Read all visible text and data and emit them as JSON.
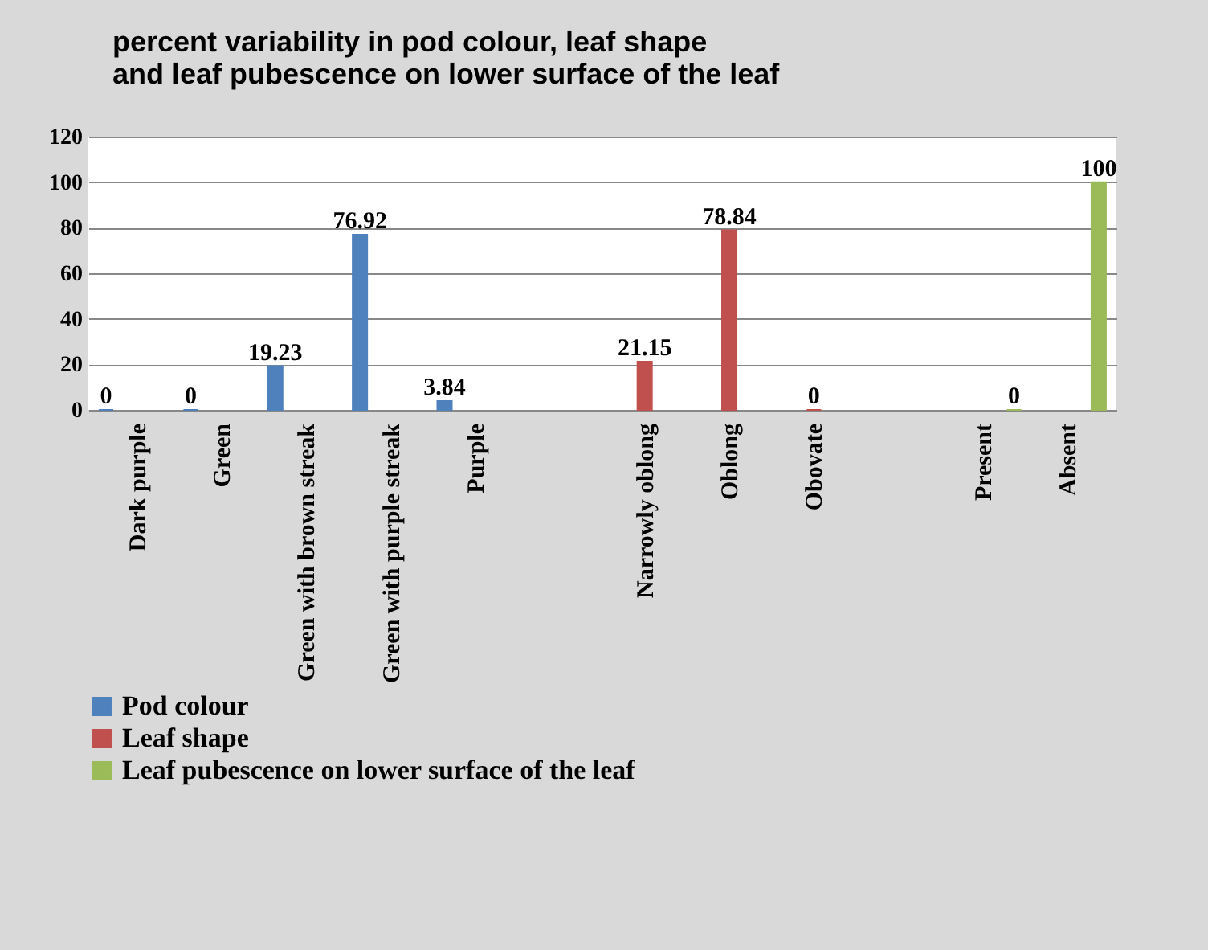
{
  "chart_data": {
    "type": "bar",
    "title": "percent variability in pod colour, leaf shape and leaf pubescence on lower surface of the leaf",
    "categories": [
      "Dark purple",
      "Green",
      "Green with brown streak",
      "Green with purple streak",
      "Purple",
      null,
      "Narrowly oblong",
      "Oblong",
      "Obovate",
      null,
      "Present",
      "Absent"
    ],
    "series": [
      {
        "name": "Pod colour",
        "color": "#4f81bd",
        "values": [
          0,
          0,
          19.23,
          76.92,
          3.84,
          null,
          null,
          null,
          null,
          null,
          null,
          null
        ]
      },
      {
        "name": "Leaf shape",
        "color": "#c0504d",
        "values": [
          null,
          null,
          null,
          null,
          null,
          null,
          21.15,
          78.84,
          0,
          null,
          null,
          null
        ]
      },
      {
        "name": "Leaf pubescence on lower surface of the leaf",
        "color": "#9bbb59",
        "values": [
          null,
          null,
          null,
          null,
          null,
          null,
          null,
          null,
          null,
          null,
          0,
          100
        ]
      }
    ],
    "ylim": [
      0,
      120
    ],
    "yticks": [
      0,
      20,
      40,
      60,
      80,
      100,
      120
    ],
    "grid": "y",
    "legend": "bottom",
    "data_labels": true
  }
}
